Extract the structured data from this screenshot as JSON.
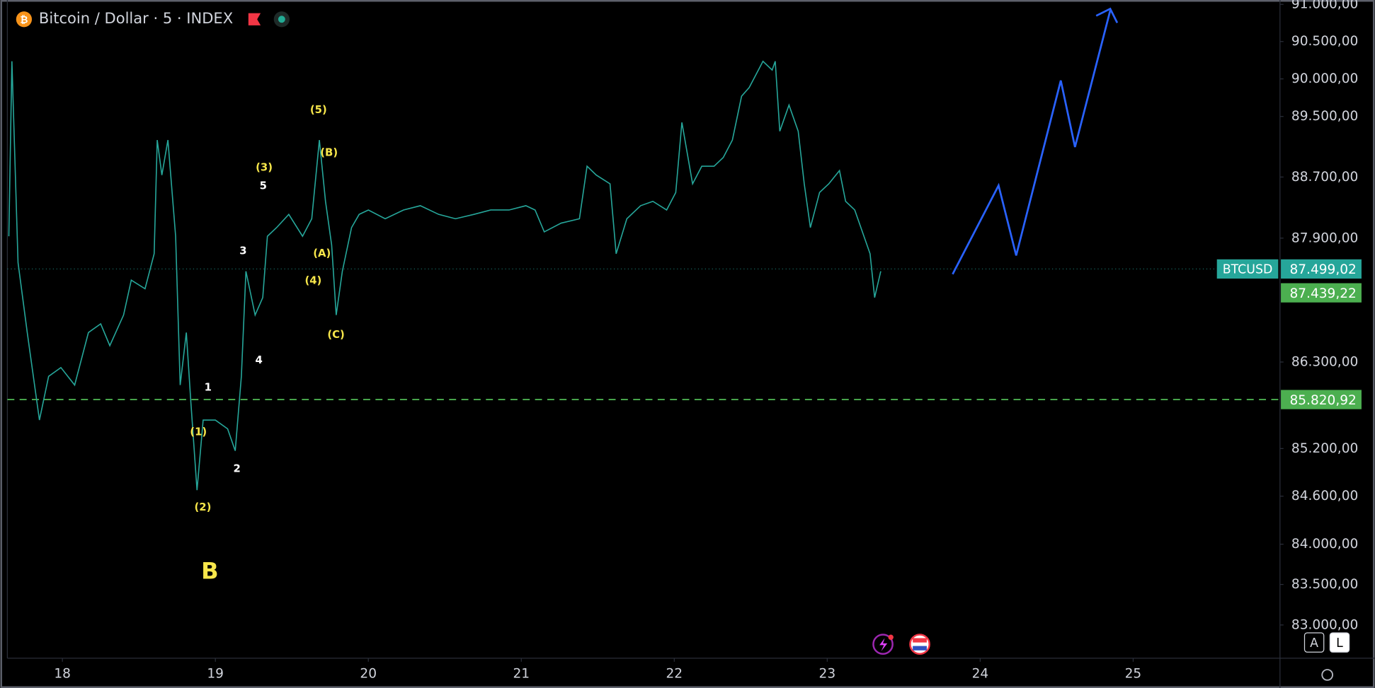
{
  "chart_data": {
    "type": "line",
    "title": "Bitcoin / Dollar · 5 · INDEX",
    "log_scale": true,
    "x": [
      17.65,
      17.67,
      17.71,
      17.77,
      17.85,
      17.91,
      17.99,
      18.08,
      18.17,
      18.25,
      18.31,
      18.4,
      18.45,
      18.54,
      18.6,
      18.62,
      18.65,
      18.69,
      18.74,
      18.77,
      18.81,
      18.84,
      18.88,
      18.92,
      19.0,
      19.08,
      19.13,
      19.17,
      19.2,
      19.26,
      19.31,
      19.34,
      19.4,
      19.48,
      19.57,
      19.63,
      19.68,
      19.72,
      19.76,
      19.79,
      19.83,
      19.89,
      19.94,
      20.0,
      20.11,
      20.23,
      20.34,
      20.46,
      20.57,
      20.69,
      20.8,
      20.92,
      21.03,
      21.09,
      21.15,
      21.26,
      21.38,
      21.43,
      21.49,
      21.58,
      21.62,
      21.69,
      21.78,
      21.86,
      21.95,
      22.01,
      22.05,
      22.12,
      22.18,
      22.26,
      22.32,
      22.38,
      22.44,
      22.49,
      22.55,
      22.58,
      22.64,
      22.66,
      22.69,
      22.75,
      22.81,
      22.85,
      22.89,
      22.95,
      23.01,
      23.08,
      23.12,
      23.18,
      23.24,
      23.28,
      23.31,
      23.35
    ],
    "series": [
      {
        "color": "#26a69a",
        "values": [
          87924,
          90235,
          87582,
          86678,
          85560,
          86117,
          86229,
          86006,
          86678,
          86790,
          86509,
          86903,
          87355,
          87242,
          87697,
          89188,
          88726,
          89188,
          87924,
          86006,
          86678,
          85783,
          84676,
          85560,
          85560,
          85449,
          85172,
          86117,
          87469,
          86903,
          87129,
          87924,
          88038,
          88210,
          87924,
          88153,
          89188,
          88381,
          87810,
          86903,
          87469,
          88038,
          88210,
          88267,
          88153,
          88267,
          88324,
          88210,
          88153,
          88210,
          88267,
          88267,
          88324,
          88267,
          87982,
          88096,
          88153,
          88842,
          88726,
          88611,
          87697,
          88153,
          88324,
          88381,
          88267,
          88497,
          89420,
          88611,
          88842,
          88842,
          88957,
          89188,
          89769,
          89885,
          90119,
          90235,
          90119,
          90235,
          89304,
          89652,
          89304,
          88611,
          88038,
          88497,
          88611,
          88784,
          88381,
          88267,
          87924,
          87697,
          87129,
          87469
        ]
      }
    ],
    "projection": {
      "color": "#2962ff",
      "x": [
        23.82,
        24.12,
        24.235,
        24.527,
        24.62,
        24.85
      ],
      "values": [
        87432,
        88589,
        87674,
        89978,
        89095,
        90917
      ]
    },
    "xlim": [
      17.64,
      25.96
    ],
    "xticks": [
      18,
      19,
      20,
      21,
      22,
      23,
      24,
      25
    ],
    "ylim": [
      82613,
      91059
    ],
    "yticks": [
      {
        "value": 91000,
        "label": "91.000,00"
      },
      {
        "value": 90500,
        "label": "90.500,00"
      },
      {
        "value": 90000,
        "label": "90.000,00"
      },
      {
        "value": 89500,
        "label": "89.500,00"
      },
      {
        "value": 88700,
        "label": "88.700,00"
      },
      {
        "value": 87900,
        "label": "87.900,00"
      },
      {
        "value": 86300,
        "label": "86.300,00"
      },
      {
        "value": 85200,
        "label": "85.200,00"
      },
      {
        "value": 84600,
        "label": "84.600,00"
      },
      {
        "value": 84000,
        "label": "84.000,00"
      },
      {
        "value": 83500,
        "label": "83.500,00"
      },
      {
        "value": 83000,
        "label": "83.000,00"
      }
    ],
    "price_lines": [
      {
        "name": "BTCUSD",
        "value": 87499.02,
        "label": "87.499,02",
        "color": "#26a69a",
        "style": "dotted"
      },
      {
        "value": 87439.22,
        "label": "87.439,22",
        "color": "#4caf50",
        "style": "none"
      },
      {
        "value": 85820.92,
        "label": "85.820,92",
        "color": "#4caf50",
        "style": "dashed"
      }
    ],
    "wave_labels": [
      {
        "text": "(5)",
        "color": "#f7e64a"
      },
      {
        "text": "(B)",
        "color": "#f7e64a"
      },
      {
        "text": "(3)",
        "color": "#f7e64a"
      },
      {
        "text": "5",
        "color": "#ffffff"
      },
      {
        "text": "3",
        "color": "#ffffff"
      },
      {
        "text": "(A)",
        "color": "#f7e64a"
      },
      {
        "text": "(4)",
        "color": "#f7e64a"
      },
      {
        "text": "(C)",
        "color": "#f7e64a"
      },
      {
        "text": "4",
        "color": "#ffffff"
      },
      {
        "text": "1",
        "color": "#ffffff"
      },
      {
        "text": "(1)",
        "color": "#f7e64a"
      },
      {
        "text": "2",
        "color": "#ffffff"
      },
      {
        "text": "(2)",
        "color": "#f7e64a"
      },
      {
        "text": "B",
        "color": "#f7e64a"
      }
    ],
    "buttons": [
      "A",
      "L"
    ]
  }
}
